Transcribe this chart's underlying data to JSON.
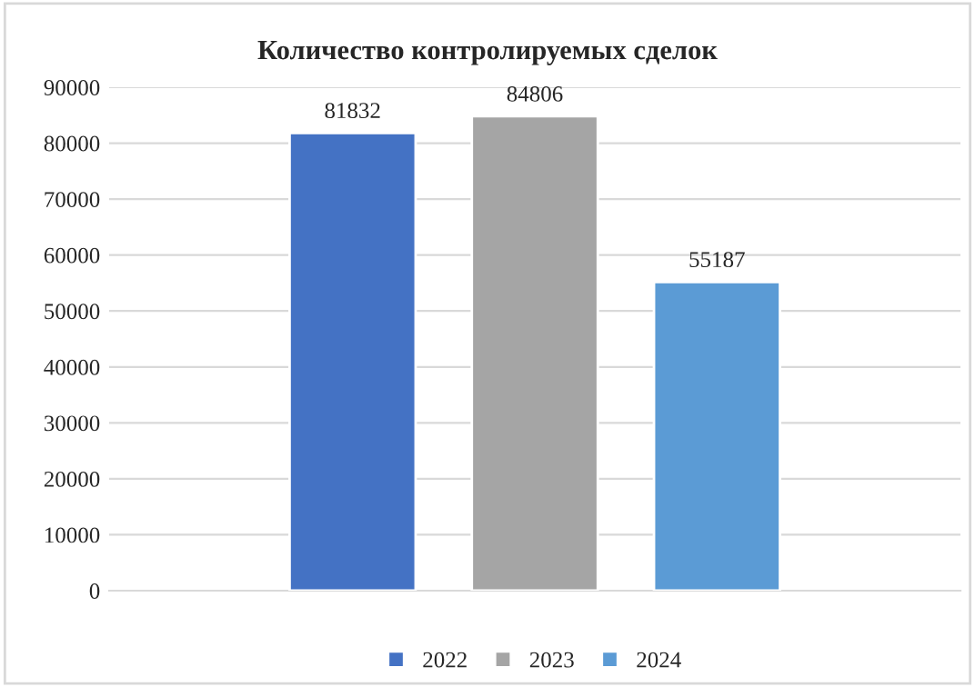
{
  "chart_data": {
    "type": "bar",
    "title": "Количество контролируемых сделок",
    "categories": [
      null
    ],
    "series": [
      {
        "name": "2022",
        "color": "#4472c4",
        "values": [
          81832
        ]
      },
      {
        "name": "2023",
        "color": "#a5a5a5",
        "values": [
          84806
        ]
      },
      {
        "name": "2024",
        "color": "#5b9bd5",
        "values": [
          55187
        ]
      }
    ],
    "ylim": [
      0,
      90000
    ],
    "yticks": [
      0,
      10000,
      20000,
      30000,
      40000,
      50000,
      60000,
      70000,
      80000,
      90000
    ],
    "grid": "y",
    "legend": "bottom",
    "data_labels": true
  }
}
